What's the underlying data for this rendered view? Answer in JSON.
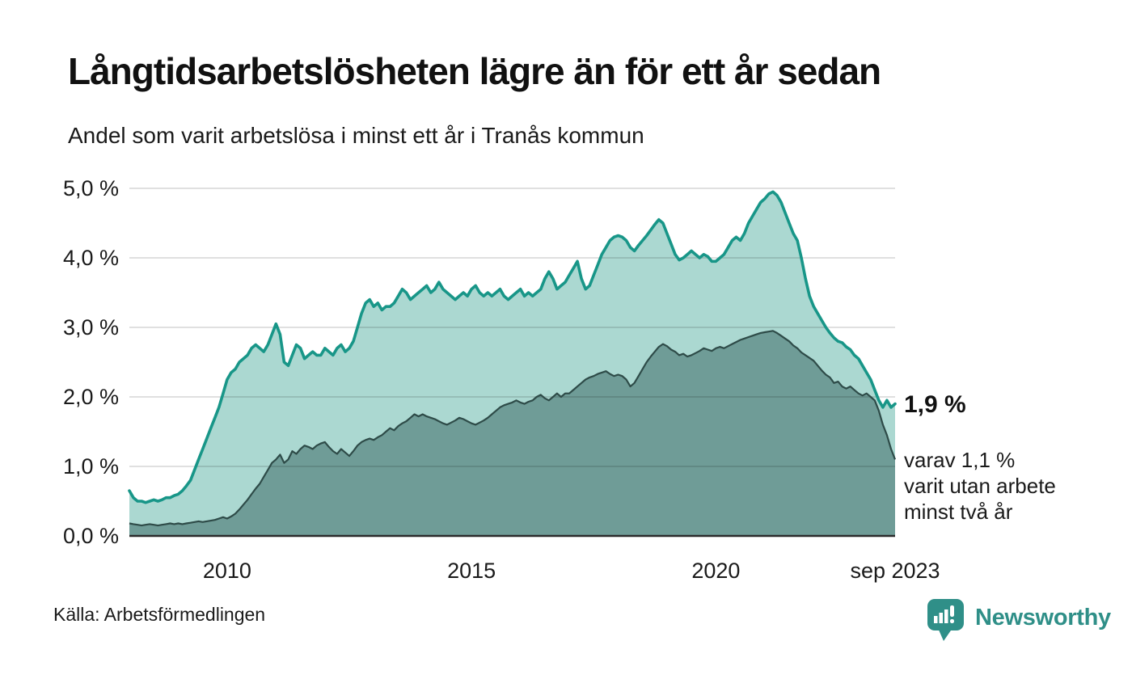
{
  "header": {
    "title": "Långtidsarbetslösheten lägre än för ett år sedan",
    "subtitle": "Andel som varit arbetslösa i minst ett år i Tranås kommun"
  },
  "annotations": {
    "end_value": "1,9 %",
    "sub_lines": [
      "varav 1,1 %",
      "varit utan arbete",
      "minst två år"
    ]
  },
  "footer": {
    "source": "Källa: Arbetsförmedlingen",
    "brand": "Newsworthy"
  },
  "colors": {
    "line_one_year": "#189688",
    "fill_one_year": "#abd8d1",
    "line_two_years": "#2e4b48",
    "fill_two_years": "#6f9c97",
    "baseline": "#2b2b2b",
    "gridline": "rgba(0,0,0,0.12)",
    "brand_teal": "#2f8f88"
  },
  "chart_data": {
    "type": "area",
    "title": "Långtidsarbetslösheten lägre än för ett år sedan",
    "subtitle": "Andel som varit arbetslösa i minst ett år i Tranås kommun",
    "unit": "percent",
    "x_start": "2008-01",
    "x_end": "2023-09",
    "ylim": [
      0,
      5
    ],
    "grid": true,
    "legend": "none",
    "y_ticks": [
      {
        "value": 5,
        "label": "5,0 %"
      },
      {
        "value": 4,
        "label": "4,0 %"
      },
      {
        "value": 3,
        "label": "3,0 %"
      },
      {
        "value": 2,
        "label": "2,0 %"
      },
      {
        "value": 1,
        "label": "1,0 %"
      },
      {
        "value": 0,
        "label": "0,0 %"
      }
    ],
    "x_ticks": [
      {
        "label": "2010",
        "month_index": 24
      },
      {
        "label": "2015",
        "month_index": 84
      },
      {
        "label": "2020",
        "month_index": 144
      },
      {
        "label": "sep 2023",
        "month_index": 188
      }
    ],
    "series": [
      {
        "name": "Andel arbetslösa minst ett år",
        "end_value": 1.9,
        "values": [
          0.65,
          0.55,
          0.5,
          0.5,
          0.48,
          0.5,
          0.52,
          0.5,
          0.52,
          0.55,
          0.55,
          0.58,
          0.6,
          0.65,
          0.72,
          0.8,
          0.95,
          1.1,
          1.25,
          1.4,
          1.55,
          1.7,
          1.85,
          2.05,
          2.25,
          2.35,
          2.4,
          2.5,
          2.55,
          2.6,
          2.7,
          2.75,
          2.7,
          2.65,
          2.75,
          2.9,
          3.05,
          2.9,
          2.5,
          2.45,
          2.6,
          2.75,
          2.7,
          2.55,
          2.6,
          2.65,
          2.6,
          2.6,
          2.7,
          2.65,
          2.6,
          2.7,
          2.75,
          2.65,
          2.7,
          2.8,
          3.0,
          3.2,
          3.35,
          3.4,
          3.3,
          3.35,
          3.25,
          3.3,
          3.3,
          3.35,
          3.45,
          3.55,
          3.5,
          3.4,
          3.45,
          3.5,
          3.55,
          3.6,
          3.5,
          3.55,
          3.65,
          3.55,
          3.5,
          3.45,
          3.4,
          3.45,
          3.5,
          3.45,
          3.55,
          3.6,
          3.5,
          3.45,
          3.5,
          3.45,
          3.5,
          3.55,
          3.45,
          3.4,
          3.45,
          3.5,
          3.55,
          3.45,
          3.5,
          3.45,
          3.5,
          3.55,
          3.7,
          3.8,
          3.7,
          3.55,
          3.6,
          3.65,
          3.75,
          3.85,
          3.95,
          3.7,
          3.55,
          3.6,
          3.75,
          3.9,
          4.05,
          4.15,
          4.25,
          4.3,
          4.32,
          4.3,
          4.25,
          4.15,
          4.1,
          4.18,
          4.25,
          4.32,
          4.4,
          4.48,
          4.55,
          4.5,
          4.35,
          4.2,
          4.05,
          3.97,
          4.0,
          4.05,
          4.1,
          4.05,
          4.0,
          4.05,
          4.02,
          3.95,
          3.95,
          4.0,
          4.05,
          4.15,
          4.25,
          4.3,
          4.25,
          4.35,
          4.5,
          4.6,
          4.7,
          4.8,
          4.85,
          4.92,
          4.95,
          4.9,
          4.8,
          4.65,
          4.5,
          4.35,
          4.25,
          4.0,
          3.7,
          3.45,
          3.3,
          3.2,
          3.1,
          3.0,
          2.92,
          2.85,
          2.8,
          2.78,
          2.72,
          2.68,
          2.6,
          2.55,
          2.45,
          2.35,
          2.25,
          2.1,
          1.95,
          1.85,
          1.95,
          1.85,
          1.9
        ]
      },
      {
        "name": "varav utan arbete minst två år",
        "end_value": 1.1,
        "values": [
          0.18,
          0.17,
          0.16,
          0.15,
          0.16,
          0.17,
          0.16,
          0.15,
          0.16,
          0.17,
          0.18,
          0.17,
          0.18,
          0.17,
          0.18,
          0.19,
          0.2,
          0.21,
          0.2,
          0.21,
          0.22,
          0.23,
          0.25,
          0.27,
          0.25,
          0.28,
          0.32,
          0.38,
          0.45,
          0.52,
          0.6,
          0.68,
          0.75,
          0.85,
          0.95,
          1.05,
          1.1,
          1.17,
          1.05,
          1.1,
          1.22,
          1.18,
          1.25,
          1.3,
          1.28,
          1.25,
          1.3,
          1.33,
          1.35,
          1.28,
          1.22,
          1.18,
          1.25,
          1.2,
          1.15,
          1.22,
          1.3,
          1.35,
          1.38,
          1.4,
          1.38,
          1.42,
          1.45,
          1.5,
          1.55,
          1.52,
          1.58,
          1.62,
          1.65,
          1.7,
          1.75,
          1.72,
          1.75,
          1.72,
          1.7,
          1.68,
          1.65,
          1.62,
          1.6,
          1.63,
          1.66,
          1.7,
          1.68,
          1.65,
          1.62,
          1.6,
          1.63,
          1.66,
          1.7,
          1.75,
          1.8,
          1.85,
          1.88,
          1.9,
          1.92,
          1.95,
          1.92,
          1.9,
          1.93,
          1.95,
          2.0,
          2.03,
          1.98,
          1.95,
          2.0,
          2.05,
          2.0,
          2.05,
          2.05,
          2.1,
          2.15,
          2.2,
          2.25,
          2.28,
          2.3,
          2.33,
          2.35,
          2.37,
          2.33,
          2.3,
          2.32,
          2.3,
          2.25,
          2.15,
          2.2,
          2.3,
          2.4,
          2.5,
          2.58,
          2.65,
          2.72,
          2.76,
          2.73,
          2.68,
          2.65,
          2.6,
          2.62,
          2.58,
          2.6,
          2.63,
          2.66,
          2.7,
          2.68,
          2.66,
          2.7,
          2.72,
          2.7,
          2.73,
          2.76,
          2.79,
          2.82,
          2.84,
          2.86,
          2.88,
          2.9,
          2.92,
          2.93,
          2.94,
          2.95,
          2.92,
          2.88,
          2.84,
          2.8,
          2.74,
          2.7,
          2.64,
          2.6,
          2.56,
          2.52,
          2.45,
          2.38,
          2.32,
          2.28,
          2.2,
          2.22,
          2.15,
          2.12,
          2.15,
          2.1,
          2.05,
          2.02,
          2.05,
          2.0,
          1.95,
          1.8,
          1.6,
          1.45,
          1.25,
          1.1
        ]
      }
    ]
  }
}
